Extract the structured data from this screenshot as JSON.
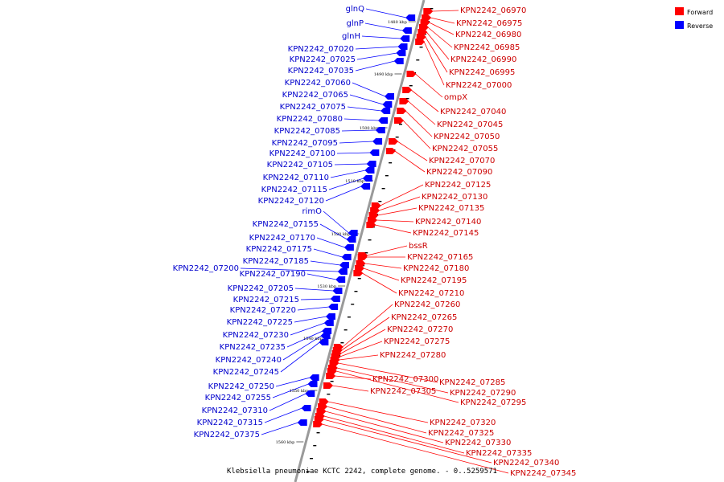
{
  "caption": "Klebsiella pneumoniae KCTC 2242, complete genome. - 0..5259571",
  "legend": [
    {
      "label": "Forward",
      "color": "#ff0000"
    },
    {
      "label": "Reverse",
      "color": "#0000ff"
    }
  ],
  "scale_ticks": [
    "1480 kbp",
    "1490 kbp",
    "1500 kbp",
    "1510 kbp",
    "1520 kbp",
    "1530 kbp",
    "1540 kbp",
    "1550 kbp",
    "1560 kbp"
  ],
  "reverse_genes": [
    "glnQ",
    "glnP",
    "glnH",
    "KPN2242_07020",
    "KPN2242_07025",
    "KPN2242_07035",
    "KPN2242_07060",
    "KPN2242_07065",
    "KPN2242_07075",
    "KPN2242_07080",
    "KPN2242_07085",
    "KPN2242_07095",
    "KPN2242_07100",
    "KPN2242_07105",
    "KPN2242_07110",
    "KPN2242_07115",
    "KPN2242_07120",
    "rimO",
    "KPN2242_07155",
    "KPN2242_07170",
    "KPN2242_07175",
    "KPN2242_07185",
    "KPN2242_07200",
    "KPN2242_07190",
    "KPN2242_07205",
    "KPN2242_07215",
    "KPN2242_07220",
    "KPN2242_07225",
    "KPN2242_07230",
    "KPN2242_07235",
    "KPN2242_07240",
    "KPN2242_07245",
    "KPN2242_07250",
    "KPN2242_07255",
    "KPN2242_07310",
    "KPN2242_07315",
    "KPN2242_07375"
  ],
  "forward_genes": [
    "KPN2242_06970",
    "KPN2242_06975",
    "KPN2242_06980",
    "KPN2242_06985",
    "KPN2242_06990",
    "KPN2242_06995",
    "KPN2242_07000",
    "ompX",
    "KPN2242_07040",
    "KPN2242_07045",
    "KPN2242_07050",
    "KPN2242_07055",
    "KPN2242_07070",
    "KPN2242_07090",
    "KPN2242_07125",
    "KPN2242_07130",
    "KPN2242_07135",
    "KPN2242_07140",
    "KPN2242_07145",
    "bssR",
    "KPN2242_07165",
    "KPN2242_07180",
    "KPN2242_07195",
    "KPN2242_07210",
    "KPN2242_07260",
    "KPN2242_07265",
    "KPN2242_07270",
    "KPN2242_07275",
    "KPN2242_07280",
    "KPN2242_07300",
    "KPN2242_07285",
    "KPN2242_07305",
    "KPN2242_07290",
    "KPN2242_07295",
    "KPN2242_07320",
    "KPN2242_07325",
    "KPN2242_07330",
    "KPN2242_07335",
    "KPN2242_07340",
    "KPN2242_07345"
  ]
}
